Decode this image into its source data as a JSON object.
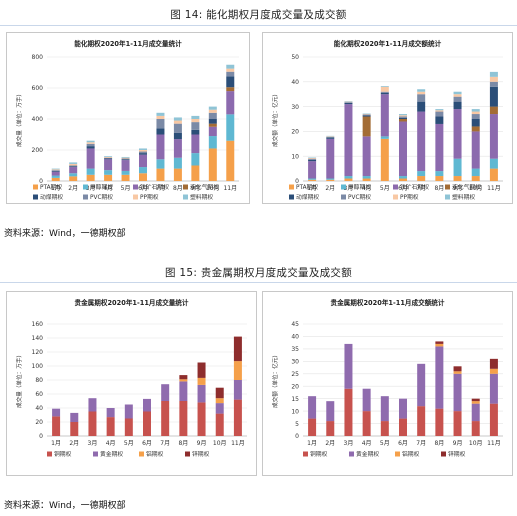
{
  "fig14_title": "图 14: 能化期权月度成交量及成交额",
  "fig15_title": "图 15: 贵金属期权月度成交量及成交额",
  "source1": "资料来源：Wind，一德期权部",
  "source2": "资料来源：Wind，一德期权部",
  "colors": {
    "orange": "#f5a04a",
    "lightblue": "#5fb8d2",
    "purple": "#8c6aae",
    "brown": "#a36c35",
    "darkblue": "#2b4e78",
    "slate": "#7b8aa6",
    "peach": "#f8c8a4",
    "teal": "#8fc4d6",
    "red": "#c7524e",
    "violet": "#8f6bae",
    "gold": "#f5a04a",
    "maroon": "#8e2d2d"
  },
  "chart_data": [
    {
      "type": "bar",
      "stacked": true,
      "title": "能化期权2020年1-11月成交量统计",
      "ylabel": "成交量（单位：万手）",
      "ylim": [
        0,
        800
      ],
      "yticks": [
        0,
        200,
        400,
        600,
        800
      ],
      "categories": [
        "1月",
        "2月",
        "3月",
        "4月",
        "5月",
        "6月",
        "7月",
        "8月",
        "9月",
        "10月",
        "11月"
      ],
      "legend_position": "bottom",
      "series": [
        {
          "name": "PTA期权",
          "color": "orange",
          "values": [
            20,
            30,
            40,
            40,
            40,
            50,
            80,
            80,
            100,
            210,
            260
          ]
        },
        {
          "name": "甲醇期权",
          "color": "lightblue",
          "values": [
            15,
            20,
            40,
            30,
            25,
            40,
            60,
            70,
            80,
            80,
            170
          ]
        },
        {
          "name": "铁矿石期权",
          "color": "purple",
          "values": [
            25,
            40,
            130,
            70,
            70,
            80,
            160,
            120,
            120,
            60,
            150
          ]
        },
        {
          "name": "液化气期权",
          "color": "brown",
          "values": [
            0,
            0,
            0,
            0,
            0,
            0,
            0,
            0,
            0,
            20,
            25
          ]
        },
        {
          "name": "动煤期权",
          "color": "darkblue",
          "values": [
            5,
            5,
            15,
            5,
            5,
            10,
            40,
            40,
            30,
            30,
            70
          ]
        },
        {
          "name": "PVC期权",
          "color": "slate",
          "values": [
            5,
            5,
            15,
            5,
            5,
            10,
            60,
            60,
            50,
            40,
            30
          ]
        },
        {
          "name": "PP期权",
          "color": "peach",
          "values": [
            5,
            10,
            10,
            5,
            5,
            10,
            20,
            20,
            20,
            20,
            20
          ]
        },
        {
          "name": "塑料期权",
          "color": "teal",
          "values": [
            5,
            10,
            10,
            5,
            5,
            10,
            20,
            20,
            20,
            20,
            25
          ]
        }
      ]
    },
    {
      "type": "bar",
      "stacked": true,
      "title": "能化期权2020年1-11月成交额统计",
      "ylabel": "成交额（单位：亿元）",
      "ylim": [
        0,
        50
      ],
      "yticks": [
        0,
        10,
        20,
        30,
        40,
        50
      ],
      "categories": [
        "1月",
        "2月",
        "3月",
        "4月",
        "5月",
        "6月",
        "7月",
        "8月",
        "9月",
        "10月",
        "11月"
      ],
      "legend_position": "bottom",
      "series": [
        {
          "name": "PTA期权",
          "color": "orange",
          "values": [
            0.5,
            0.5,
            1,
            1,
            17,
            1,
            2,
            2,
            2,
            2,
            5
          ]
        },
        {
          "name": "甲醇期权",
          "color": "lightblue",
          "values": [
            0.5,
            0.5,
            1,
            1,
            1,
            1,
            2,
            2,
            7,
            3,
            4
          ]
        },
        {
          "name": "铁矿石期权",
          "color": "purple",
          "values": [
            7,
            16,
            29,
            16,
            17,
            22,
            24,
            19,
            20,
            15,
            18
          ]
        },
        {
          "name": "液化气期权",
          "color": "brown",
          "values": [
            0,
            0,
            0,
            8,
            0,
            1,
            0,
            0,
            0,
            2,
            3
          ]
        },
        {
          "name": "动煤期权",
          "color": "darkblue",
          "values": [
            0.5,
            0.5,
            0.5,
            0.5,
            0.5,
            0.5,
            4,
            3,
            3,
            3,
            8
          ]
        },
        {
          "name": "PVC期权",
          "color": "slate",
          "values": [
            0.5,
            0.3,
            0.3,
            0.3,
            0.5,
            0.5,
            3,
            2,
            2,
            2,
            2
          ]
        },
        {
          "name": "PP期权",
          "color": "peach",
          "values": [
            0.3,
            0.2,
            0.2,
            0.2,
            2,
            0.5,
            1,
            0.5,
            1,
            1,
            2
          ]
        },
        {
          "name": "塑料期权",
          "color": "teal",
          "values": [
            0.2,
            0.2,
            0.2,
            0.2,
            0.3,
            0.5,
            1,
            0.5,
            1,
            1,
            2
          ]
        }
      ]
    },
    {
      "type": "bar",
      "stacked": true,
      "title": "贵金属期权2020年1-11月成交量统计",
      "ylabel": "成交量（单位：万手）",
      "ylim": [
        0,
        160
      ],
      "yticks": [
        0,
        20,
        40,
        60,
        80,
        100,
        120,
        140,
        160
      ],
      "categories": [
        "1月",
        "2月",
        "3月",
        "4月",
        "5月",
        "6月",
        "7月",
        "8月",
        "9月",
        "10月",
        "11月"
      ],
      "legend_position": "bottom",
      "series": [
        {
          "name": "铜期权",
          "color": "red",
          "values": [
            28,
            20,
            35,
            27,
            25,
            35,
            50,
            50,
            48,
            32,
            52
          ]
        },
        {
          "name": "黄金期权",
          "color": "violet",
          "values": [
            11,
            13,
            19,
            13,
            20,
            18,
            24,
            28,
            25,
            15,
            28
          ]
        },
        {
          "name": "铝期权",
          "color": "gold",
          "values": [
            0,
            0,
            0,
            0,
            0,
            0,
            0,
            3,
            10,
            7,
            27
          ]
        },
        {
          "name": "锌期权",
          "color": "maroon",
          "values": [
            0,
            0,
            0,
            0,
            0,
            0,
            0,
            6,
            22,
            15,
            35
          ]
        }
      ]
    },
    {
      "type": "bar",
      "stacked": true,
      "title": "贵金属期权2020年1-11月成交额统计",
      "ylabel": "成交额（单位：亿元）",
      "ylim": [
        0,
        45
      ],
      "yticks": [
        0,
        5,
        10,
        15,
        20,
        25,
        30,
        35,
        40,
        45
      ],
      "categories": [
        "1月",
        "2月",
        "3月",
        "4月",
        "5月",
        "6月",
        "7月",
        "8月",
        "9月",
        "10月",
        "11月"
      ],
      "legend_position": "bottom",
      "series": [
        {
          "name": "铜期权",
          "color": "red",
          "values": [
            7,
            6,
            19,
            10,
            6,
            7,
            12,
            11,
            10,
            6,
            13
          ]
        },
        {
          "name": "黄金期权",
          "color": "violet",
          "values": [
            9,
            8,
            18,
            9,
            10,
            8,
            17,
            25,
            15,
            7,
            12
          ]
        },
        {
          "name": "铝期权",
          "color": "gold",
          "values": [
            0,
            0,
            0,
            0,
            0,
            0,
            0,
            1,
            1,
            1,
            2
          ]
        },
        {
          "name": "锌期权",
          "color": "maroon",
          "values": [
            0,
            0,
            0,
            0,
            0,
            0,
            0,
            1,
            2,
            1,
            4
          ]
        }
      ]
    }
  ]
}
